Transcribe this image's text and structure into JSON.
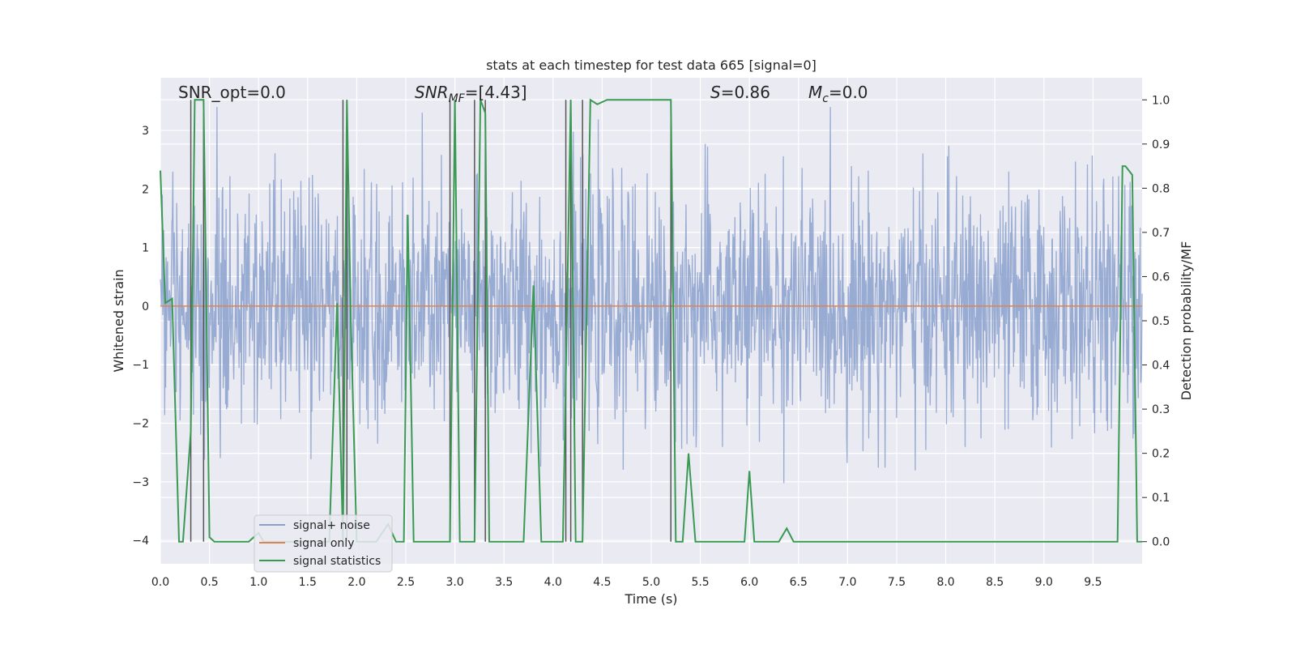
{
  "chart_data": {
    "type": "line",
    "title": "stats at each timestep for test data 665 [signal=0]",
    "xlabel": "Time (s)",
    "ylabel": "Whitened strain",
    "y2label": "Detection probability/MF",
    "xlim": [
      0,
      10
    ],
    "ylim": [
      -4.4,
      3.9
    ],
    "y2lim": [
      -0.05,
      1.05
    ],
    "x_ticks": [
      "0.0",
      "0.5",
      "1.0",
      "1.5",
      "2.0",
      "2.5",
      "3.0",
      "3.5",
      "4.0",
      "4.5",
      "5.0",
      "5.5",
      "6.0",
      "6.5",
      "7.0",
      "7.5",
      "8.0",
      "8.5",
      "9.0",
      "9.5"
    ],
    "y_ticks": [
      "3",
      "2",
      "1",
      "0",
      "−1",
      "−2",
      "−3",
      "−4"
    ],
    "y2_ticks": [
      "1.0",
      "0.9",
      "0.8",
      "0.7",
      "0.6",
      "0.5",
      "0.4",
      "0.3",
      "0.2",
      "0.1",
      "0.0"
    ],
    "grid": true,
    "legend_position": "lower-left",
    "annotations": {
      "snr_opt": "SNR_opt=0.0",
      "snr_mf_base": "SNR",
      "snr_mf_sub": "MF",
      "snr_mf_value": "=[4.43]",
      "s_sym": "S",
      "s_value": "=0.86",
      "mc_base": "M",
      "mc_sub": "c",
      "mc_value": "=0.0"
    },
    "series": [
      {
        "name": "signal+ noise",
        "axis": "left",
        "color": "#8aa0cc",
        "kind": "noise",
        "n_samples": 2048,
        "peak_positive": 3.4,
        "peak_negative": -3.6,
        "std_estimate": 1.0
      },
      {
        "name": "signal only",
        "axis": "left",
        "color": "#dd8452",
        "x": [
          0.0,
          10.0
        ],
        "values": [
          0.0,
          0.0
        ]
      },
      {
        "name": "signal statistics",
        "axis": "right",
        "color": "#3a9a54",
        "x": [
          0.0,
          0.05,
          0.12,
          0.19,
          0.23,
          0.31,
          0.35,
          0.39,
          0.44,
          0.5,
          0.55,
          0.6,
          0.7,
          0.8,
          0.9,
          1.0,
          1.05,
          1.1,
          1.4,
          1.6,
          1.72,
          1.8,
          1.86,
          1.9,
          1.94,
          2.0,
          2.05,
          2.2,
          2.32,
          2.4,
          2.48,
          2.52,
          2.58,
          2.7,
          2.8,
          2.95,
          3.0,
          3.05,
          3.1,
          3.2,
          3.26,
          3.31,
          3.35,
          3.5,
          3.7,
          3.8,
          3.88,
          3.95,
          4.1,
          4.18,
          4.23,
          4.3,
          4.38,
          4.45,
          4.55,
          4.7,
          4.9,
          5.1,
          5.2,
          5.25,
          5.32,
          5.38,
          5.45,
          5.55,
          5.75,
          5.85,
          5.95,
          6.0,
          6.05,
          6.2,
          6.3,
          6.38,
          6.45,
          6.6,
          7.0,
          8.0,
          9.0,
          9.6,
          9.75,
          9.8,
          9.83,
          9.9,
          9.95,
          10.0
        ],
        "values": [
          0.84,
          0.54,
          0.55,
          0.0,
          0.0,
          0.25,
          1.0,
          1.0,
          1.0,
          0.01,
          0.0,
          0.0,
          0.0,
          0.0,
          0.0,
          0.02,
          0.0,
          0.0,
          0.0,
          0.0,
          0.0,
          0.54,
          0.0,
          1.0,
          0.5,
          0.0,
          0.0,
          0.0,
          0.04,
          0.0,
          0.0,
          0.74,
          0.0,
          0.0,
          0.0,
          0.0,
          1.0,
          0.0,
          0.0,
          0.0,
          1.0,
          0.97,
          0.0,
          0.0,
          0.0,
          0.58,
          0.0,
          0.0,
          0.0,
          1.0,
          0.0,
          0.0,
          1.0,
          0.99,
          1.0,
          1.0,
          1.0,
          1.0,
          1.0,
          0.0,
          0.0,
          0.2,
          0.0,
          0.0,
          0.0,
          0.0,
          0.0,
          0.16,
          0.0,
          0.0,
          0.0,
          0.03,
          0.0,
          0.0,
          0.0,
          0.0,
          0.0,
          0.0,
          0.0,
          0.85,
          0.85,
          0.83,
          0.0,
          0.0
        ]
      }
    ],
    "vertical_lines_x": [
      0.31,
      0.44,
      1.86,
      1.9,
      2.95,
      3.2,
      3.31,
      4.13,
      4.18,
      4.3,
      5.2
    ],
    "vertical_line_color": "#555555",
    "background": "#eaeaf2"
  }
}
